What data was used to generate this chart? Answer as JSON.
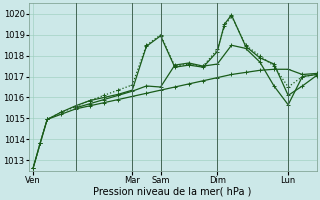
{
  "background_color": "#cce8e8",
  "grid_color": "#99ccbb",
  "line_color": "#1a5c1a",
  "ylim": [
    1012.5,
    1020.5
  ],
  "yticks": [
    1013,
    1014,
    1015,
    1016,
    1017,
    1018,
    1019,
    1020
  ],
  "xlabel": "Pression niveau de la mer( hPa )",
  "xlabel_fontsize": 7,
  "tick_fontsize": 6,
  "day_labels": [
    {
      "label": "Ven",
      "x": 0
    },
    {
      "label": "Mar",
      "x": 7
    },
    {
      "label": "Sam",
      "x": 9
    },
    {
      "label": "Dim",
      "x": 13
    },
    {
      "label": "Lun",
      "x": 18
    }
  ],
  "vlines": [
    3,
    7,
    9,
    13,
    18
  ],
  "xlim": [
    -0.3,
    20
  ],
  "series": [
    {
      "x": [
        0,
        0.5,
        1,
        2,
        3,
        4,
        5,
        6,
        7,
        8,
        9,
        10,
        11,
        12,
        13,
        13.5,
        14,
        15,
        16,
        17,
        18,
        19,
        20
      ],
      "y": [
        1012.6,
        1013.8,
        1014.95,
        1015.3,
        1015.55,
        1015.85,
        1016.1,
        1016.35,
        1016.6,
        1018.5,
        1019.0,
        1017.5,
        1017.6,
        1017.5,
        1018.3,
        1019.4,
        1019.9,
        1018.5,
        1018.0,
        1017.5,
        1016.5,
        1017.0,
        1017.1
      ],
      "linestyle": "dotted",
      "linewidth": 0.9,
      "marker": true
    },
    {
      "x": [
        0,
        0.5,
        1,
        2,
        3,
        4,
        5,
        6,
        7,
        8,
        9,
        10,
        11,
        12,
        13,
        13.5,
        14,
        15,
        16,
        17,
        18,
        19,
        20
      ],
      "y": [
        1012.6,
        1013.8,
        1014.95,
        1015.3,
        1015.6,
        1015.85,
        1016.0,
        1016.15,
        1016.35,
        1018.45,
        1018.95,
        1017.45,
        1017.55,
        1017.45,
        1018.2,
        1019.5,
        1019.95,
        1018.45,
        1017.9,
        1017.6,
        1016.1,
        1016.55,
        1017.05
      ],
      "linestyle": "solid",
      "linewidth": 0.9,
      "marker": true
    },
    {
      "x": [
        0,
        0.5,
        1,
        2,
        3,
        4,
        5,
        6,
        7,
        8,
        9,
        10,
        11,
        12,
        13,
        14,
        15,
        16,
        17,
        18,
        19,
        20
      ],
      "y": [
        1012.6,
        1013.8,
        1014.95,
        1015.2,
        1015.45,
        1015.6,
        1015.75,
        1015.9,
        1016.05,
        1016.2,
        1016.35,
        1016.5,
        1016.65,
        1016.8,
        1016.95,
        1017.1,
        1017.2,
        1017.3,
        1017.35,
        1017.35,
        1017.1,
        1017.15
      ],
      "linestyle": "solid",
      "linewidth": 0.9,
      "marker": true
    },
    {
      "x": [
        3,
        4,
        5,
        6,
        7,
        8,
        9,
        10,
        11,
        12,
        13,
        14,
        15,
        16,
        17,
        18,
        19,
        20
      ],
      "y": [
        1015.5,
        1015.7,
        1015.9,
        1016.1,
        1016.3,
        1016.55,
        1016.5,
        1017.55,
        1017.65,
        1017.5,
        1017.6,
        1018.5,
        1018.35,
        1017.7,
        1016.55,
        1015.65,
        1017.0,
        1017.1
      ],
      "linestyle": "solid",
      "linewidth": 0.9,
      "marker": true
    }
  ]
}
